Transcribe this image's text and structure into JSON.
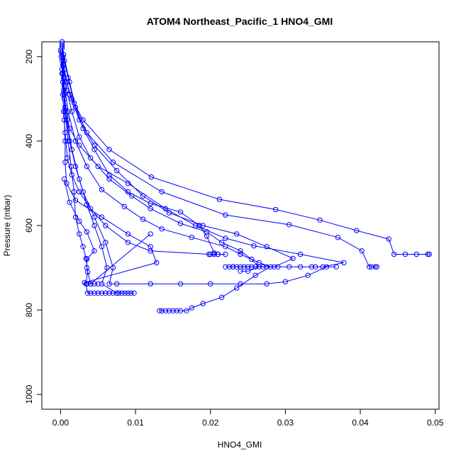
{
  "chart_data": {
    "type": "line",
    "title": "ATOM4 Northeast_Pacific_1 HNO4_GMI",
    "xlabel": "HNO4_GMI",
    "ylabel": "Pressure (mbar)",
    "xlim": [
      -0.0025,
      0.0505
    ],
    "ylim": [
      1035,
      165
    ],
    "y_reversed": true,
    "grid": false,
    "x_ticks": [
      {
        "value": 0.0,
        "label": "0.00"
      },
      {
        "value": 0.01,
        "label": "0.01"
      },
      {
        "value": 0.02,
        "label": "0.02"
      },
      {
        "value": 0.03,
        "label": "0.03"
      },
      {
        "value": 0.04,
        "label": "0.04"
      },
      {
        "value": 0.05,
        "label": "0.05"
      }
    ],
    "y_ticks": [
      {
        "value": 200,
        "label": "200"
      },
      {
        "value": 400,
        "label": "400"
      },
      {
        "value": 600,
        "label": "600"
      },
      {
        "value": 800,
        "label": "800"
      },
      {
        "value": 1000,
        "label": "1000"
      }
    ],
    "marker": "open-circle",
    "color": "#0000ff",
    "series": [
      {
        "points": [
          [
            0.0002,
            165
          ],
          [
            0.0003,
            200
          ],
          [
            0.0004,
            250
          ],
          [
            0.0005,
            300
          ],
          [
            0.0005,
            350
          ],
          [
            0.0006,
            400
          ],
          [
            0.0006,
            450
          ],
          [
            0.0008,
            500
          ],
          [
            0.002,
            540
          ],
          [
            0.0055,
            580
          ],
          [
            0.009,
            620
          ],
          [
            0.012,
            650
          ],
          [
            0.0128,
            688
          ],
          [
            0.0032,
            735
          ],
          [
            0.0035,
            738
          ],
          [
            0.004,
            738
          ],
          [
            0.0045,
            738
          ],
          [
            0.005,
            738
          ]
        ]
      },
      {
        "points": [
          [
            0.0001,
            190
          ],
          [
            0.0002,
            240
          ],
          [
            0.0003,
            290
          ],
          [
            0.0004,
            330
          ],
          [
            0.0006,
            380
          ],
          [
            0.0009,
            440
          ],
          [
            0.0015,
            480
          ],
          [
            0.0025,
            520
          ],
          [
            0.004,
            560
          ],
          [
            0.006,
            600
          ],
          [
            0.009,
            640
          ],
          [
            0.012,
            660
          ],
          [
            0.0198,
            668
          ],
          [
            0.02,
            668
          ],
          [
            0.0205,
            668
          ],
          [
            0.021,
            668
          ],
          [
            0.022,
            668
          ]
        ]
      },
      {
        "points": [
          [
            0.0002,
            180
          ],
          [
            0.0004,
            220
          ],
          [
            0.0008,
            260
          ],
          [
            0.0015,
            300
          ],
          [
            0.003,
            350
          ],
          [
            0.0065,
            420
          ],
          [
            0.0121,
            485
          ],
          [
            0.0212,
            538
          ],
          [
            0.0287,
            562
          ],
          [
            0.0346,
            587
          ],
          [
            0.0395,
            612
          ],
          [
            0.0438,
            632
          ],
          [
            0.0445,
            668
          ],
          [
            0.046,
            668
          ],
          [
            0.0475,
            668
          ],
          [
            0.049,
            668
          ],
          [
            0.0492,
            668
          ]
        ]
      },
      {
        "points": [
          [
            0.0002,
            170
          ],
          [
            0.0005,
            210
          ],
          [
            0.001,
            250
          ],
          [
            0.0018,
            310
          ],
          [
            0.0035,
            380
          ],
          [
            0.007,
            450
          ],
          [
            0.0135,
            520
          ],
          [
            0.022,
            575
          ],
          [
            0.0305,
            598
          ],
          [
            0.037,
            628
          ],
          [
            0.0402,
            660
          ],
          [
            0.0412,
            698
          ],
          [
            0.0415,
            698
          ],
          [
            0.042,
            698
          ],
          [
            0.0422,
            698
          ]
        ]
      },
      {
        "points": [
          [
            0.0001,
            200
          ],
          [
            0.0003,
            260
          ],
          [
            0.0006,
            320
          ],
          [
            0.0012,
            370
          ],
          [
            0.0025,
            410
          ],
          [
            0.005,
            460
          ],
          [
            0.009,
            500
          ],
          [
            0.014,
            560
          ],
          [
            0.018,
            600
          ],
          [
            0.022,
            630
          ],
          [
            0.0258,
            648
          ],
          [
            0.032,
            668
          ],
          [
            0.0378,
            688
          ],
          [
            0.035,
            698
          ],
          [
            0.034,
            698
          ],
          [
            0.0335,
            698
          ],
          [
            0.032,
            698
          ],
          [
            0.0305,
            698
          ],
          [
            0.029,
            698
          ],
          [
            0.0275,
            698
          ],
          [
            0.026,
            698
          ],
          [
            0.0245,
            698
          ],
          [
            0.023,
            698
          ],
          [
            0.022,
            698
          ]
        ]
      },
      {
        "points": [
          [
            0.0002,
            175
          ],
          [
            0.0005,
            230
          ],
          [
            0.0012,
            290
          ],
          [
            0.0025,
            350
          ],
          [
            0.0045,
            410
          ],
          [
            0.0075,
            470
          ],
          [
            0.011,
            530
          ],
          [
            0.0145,
            570
          ],
          [
            0.019,
            600
          ],
          [
            0.0235,
            620
          ],
          [
            0.0275,
            650
          ],
          [
            0.031,
            678
          ],
          [
            0.0285,
            698
          ],
          [
            0.027,
            698
          ],
          [
            0.0255,
            698
          ],
          [
            0.025,
            698
          ],
          [
            0.024,
            698
          ],
          [
            0.0235,
            698
          ],
          [
            0.023,
            698
          ],
          [
            0.0225,
            698
          ]
        ]
      },
      {
        "points": [
          [
            0.0,
            185
          ],
          [
            0.0002,
            230
          ],
          [
            0.0004,
            280
          ],
          [
            0.0007,
            340
          ],
          [
            0.0012,
            400
          ],
          [
            0.002,
            460
          ],
          [
            0.003,
            520
          ],
          [
            0.0045,
            580
          ],
          [
            0.006,
            640
          ],
          [
            0.007,
            700
          ],
          [
            0.0065,
            738
          ],
          [
            0.0075,
            738
          ],
          [
            0.012,
            738
          ],
          [
            0.016,
            738
          ],
          [
            0.02,
            738
          ],
          [
            0.024,
            738
          ],
          [
            0.0275,
            738
          ],
          [
            0.03,
            733
          ],
          [
            0.033,
            718
          ],
          [
            0.0355,
            698
          ],
          [
            0.0368,
            698
          ]
        ]
      },
      {
        "points": [
          [
            0.0001,
            190
          ],
          [
            0.0003,
            240
          ],
          [
            0.0005,
            290
          ],
          [
            0.0009,
            350
          ],
          [
            0.0015,
            420
          ],
          [
            0.0025,
            490
          ],
          [
            0.0035,
            550
          ],
          [
            0.0045,
            600
          ],
          [
            0.0055,
            650
          ],
          [
            0.0062,
            700
          ],
          [
            0.0055,
            738
          ],
          [
            0.0075,
            760
          ],
          [
            0.0078,
            760
          ],
          [
            0.0082,
            760
          ],
          [
            0.0086,
            760
          ],
          [
            0.009,
            760
          ],
          [
            0.0094,
            760
          ],
          [
            0.0098,
            760
          ]
        ]
      },
      {
        "points": [
          [
            0.0001,
            200
          ],
          [
            0.0003,
            260
          ],
          [
            0.0006,
            330
          ],
          [
            0.001,
            400
          ],
          [
            0.0014,
            460
          ],
          [
            0.0018,
            520
          ],
          [
            0.002,
            580
          ],
          [
            0.0025,
            620
          ],
          [
            0.003,
            650
          ],
          [
            0.0034,
            678
          ],
          [
            0.0036,
            710
          ],
          [
            0.0034,
            738
          ],
          [
            0.0036,
            760
          ],
          [
            0.004,
            760
          ],
          [
            0.0045,
            760
          ],
          [
            0.005,
            760
          ],
          [
            0.0055,
            760
          ],
          [
            0.006,
            760
          ],
          [
            0.0065,
            760
          ],
          [
            0.007,
            760
          ],
          [
            0.0075,
            760
          ]
        ]
      },
      {
        "points": [
          [
            0.0002,
            210
          ],
          [
            0.0005,
            270
          ],
          [
            0.001,
            330
          ],
          [
            0.002,
            400
          ],
          [
            0.0035,
            460
          ],
          [
            0.0055,
            515
          ],
          [
            0.0085,
            555
          ],
          [
            0.011,
            585
          ],
          [
            0.0135,
            608
          ],
          [
            0.0175,
            628
          ],
          [
            0.022,
            650
          ],
          [
            0.024,
            668
          ],
          [
            0.0265,
            688
          ],
          [
            0.028,
            698
          ],
          [
            0.026,
            718
          ],
          [
            0.0235,
            748
          ],
          [
            0.0215,
            770
          ],
          [
            0.019,
            785
          ],
          [
            0.0175,
            795
          ],
          [
            0.0168,
            802
          ],
          [
            0.016,
            802
          ],
          [
            0.0155,
            802
          ],
          [
            0.015,
            802
          ],
          [
            0.0145,
            802
          ],
          [
            0.014,
            802
          ],
          [
            0.0135,
            802
          ],
          [
            0.0132,
            802
          ]
        ]
      },
      {
        "points": [
          [
            0.0003,
            220
          ],
          [
            0.0008,
            280
          ],
          [
            0.0015,
            330
          ],
          [
            0.0025,
            390
          ],
          [
            0.004,
            440
          ],
          [
            0.0065,
            490
          ],
          [
            0.0095,
            530
          ],
          [
            0.012,
            560
          ],
          [
            0.016,
            595
          ],
          [
            0.0195,
            615
          ],
          [
            0.0215,
            640
          ],
          [
            0.024,
            660
          ],
          [
            0.0255,
            680
          ],
          [
            0.0265,
            698
          ],
          [
            0.025,
            708
          ],
          [
            0.024,
            708
          ]
        ]
      },
      {
        "points": [
          [
            0.0004,
            195
          ],
          [
            0.0012,
            260
          ],
          [
            0.002,
            320
          ],
          [
            0.003,
            370
          ],
          [
            0.0045,
            420
          ],
          [
            0.0065,
            480
          ],
          [
            0.009,
            520
          ],
          [
            0.012,
            548
          ],
          [
            0.016,
            568
          ],
          [
            0.0185,
            600
          ],
          [
            0.0195,
            625
          ],
          [
            0.0205,
            665
          ],
          [
            0.021,
            668
          ]
        ]
      },
      {
        "points": [
          [
            0.0005,
            490
          ],
          [
            0.0012,
            545
          ],
          [
            0.0025,
            590
          ],
          [
            0.0035,
            615
          ],
          [
            0.0045,
            660
          ],
          [
            0.0035,
            680
          ],
          [
            0.0035,
            700
          ],
          [
            0.004,
            738
          ],
          [
            0.012,
            620
          ]
        ]
      }
    ]
  }
}
